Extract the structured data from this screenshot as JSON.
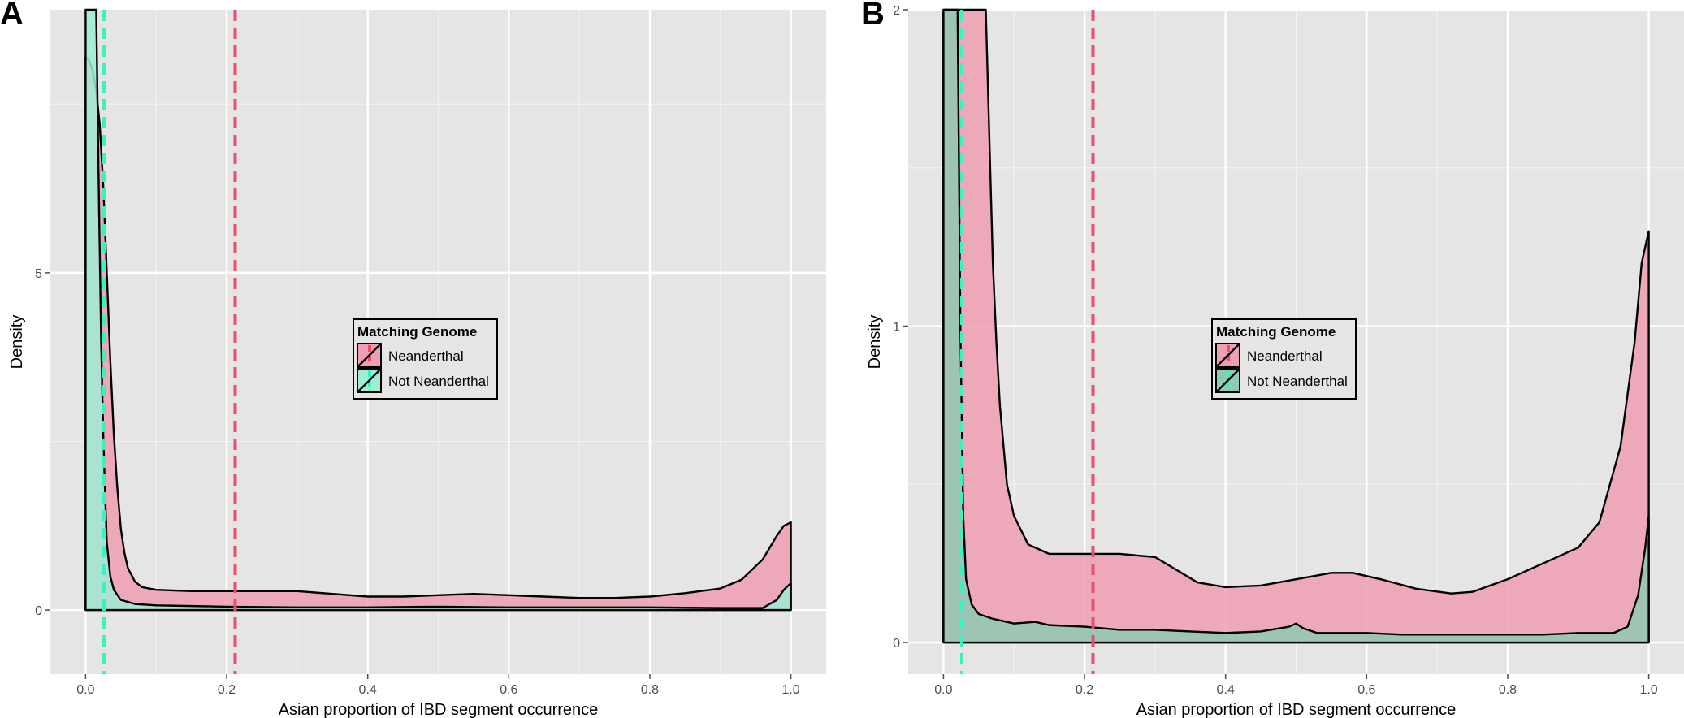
{
  "chart_data": [
    {
      "panel": "A",
      "type": "area",
      "xlabel": "Asian proportion of IBD segment occurrence",
      "ylabel": "Density",
      "xlim": [
        -0.05,
        1.05
      ],
      "ylim": [
        -0.95,
        8.9
      ],
      "x_ticks": [
        "0.0",
        "0.2",
        "0.4",
        "0.6",
        "0.8",
        "1.0"
      ],
      "y_ticks": [
        "0",
        "5"
      ],
      "y_tick_values": [
        0,
        5
      ],
      "grid": true,
      "background": "#e5e5e5",
      "legend": {
        "title": "Matching Genome",
        "position": "center",
        "entries": [
          "Neanderthal",
          "Not Neanderthal"
        ]
      },
      "vlines": [
        {
          "series": "Neanderthal",
          "x": 0.212,
          "style": "dashed"
        },
        {
          "series": "Not Neanderthal",
          "x": 0.026,
          "style": "dashed"
        }
      ],
      "series": [
        {
          "name": "Neanderthal",
          "color": "#ef9fb3",
          "line_color": "#e8506e",
          "points": [
            [
              0.0,
              8.2
            ],
            [
              0.005,
              8.15
            ],
            [
              0.01,
              8.0
            ],
            [
              0.015,
              7.7
            ],
            [
              0.02,
              7.2
            ],
            [
              0.025,
              6.3
            ],
            [
              0.03,
              5.0
            ],
            [
              0.035,
              3.7
            ],
            [
              0.04,
              2.6
            ],
            [
              0.045,
              1.8
            ],
            [
              0.05,
              1.2
            ],
            [
              0.055,
              0.85
            ],
            [
              0.06,
              0.62
            ],
            [
              0.07,
              0.42
            ],
            [
              0.08,
              0.34
            ],
            [
              0.1,
              0.3
            ],
            [
              0.15,
              0.28
            ],
            [
              0.2,
              0.28
            ],
            [
              0.25,
              0.28
            ],
            [
              0.3,
              0.28
            ],
            [
              0.35,
              0.24
            ],
            [
              0.4,
              0.2
            ],
            [
              0.45,
              0.2
            ],
            [
              0.5,
              0.22
            ],
            [
              0.55,
              0.24
            ],
            [
              0.6,
              0.22
            ],
            [
              0.65,
              0.2
            ],
            [
              0.7,
              0.18
            ],
            [
              0.75,
              0.18
            ],
            [
              0.8,
              0.2
            ],
            [
              0.85,
              0.25
            ],
            [
              0.9,
              0.32
            ],
            [
              0.93,
              0.45
            ],
            [
              0.96,
              0.75
            ],
            [
              0.98,
              1.1
            ],
            [
              0.99,
              1.25
            ],
            [
              1.0,
              1.3
            ]
          ]
        },
        {
          "name": "Not Neanderthal",
          "color": "#9eedd5",
          "line_color": "#3cf0c0",
          "points": [
            [
              0.0,
              9.0
            ],
            [
              0.01,
              9.0
            ],
            [
              0.015,
              9.0
            ],
            [
              0.019,
              6.0
            ],
            [
              0.022,
              4.0
            ],
            [
              0.025,
              2.6
            ],
            [
              0.028,
              1.6
            ],
            [
              0.03,
              1.0
            ],
            [
              0.035,
              0.5
            ],
            [
              0.04,
              0.3
            ],
            [
              0.05,
              0.15
            ],
            [
              0.07,
              0.09
            ],
            [
              0.1,
              0.07
            ],
            [
              0.15,
              0.06
            ],
            [
              0.2,
              0.05
            ],
            [
              0.3,
              0.04
            ],
            [
              0.4,
              0.04
            ],
            [
              0.5,
              0.05
            ],
            [
              0.6,
              0.04
            ],
            [
              0.7,
              0.04
            ],
            [
              0.8,
              0.04
            ],
            [
              0.9,
              0.03
            ],
            [
              0.96,
              0.03
            ],
            [
              0.98,
              0.15
            ],
            [
              0.99,
              0.3
            ],
            [
              1.0,
              0.4
            ]
          ]
        }
      ]
    },
    {
      "panel": "B",
      "type": "area",
      "xlabel": "Asian proportion of IBD segment occurrence",
      "ylabel": "Density",
      "xlim": [
        -0.05,
        1.05
      ],
      "ylim": [
        -0.1,
        2.0
      ],
      "x_ticks": [
        "0.0",
        "0.2",
        "0.4",
        "0.6",
        "0.8",
        "1.0"
      ],
      "y_ticks": [
        "0",
        "1",
        "2"
      ],
      "y_tick_values": [
        0,
        1,
        2
      ],
      "grid": true,
      "background": "#e5e5e5",
      "legend": {
        "title": "Matching Genome",
        "position": "center",
        "entries": [
          "Neanderthal",
          "Not Neanderthal"
        ]
      },
      "vlines": [
        {
          "series": "Neanderthal",
          "x": 0.212,
          "style": "dashed"
        },
        {
          "series": "Not Neanderthal",
          "x": 0.026,
          "style": "dashed"
        }
      ],
      "series": [
        {
          "name": "Neanderthal",
          "color": "#ef9fb3",
          "line_color": "#e8506e",
          "points": [
            [
              0.0,
              2.0
            ],
            [
              0.05,
              2.0
            ],
            [
              0.06,
              2.0
            ],
            [
              0.065,
              1.6
            ],
            [
              0.07,
              1.2
            ],
            [
              0.075,
              0.95
            ],
            [
              0.08,
              0.75
            ],
            [
              0.09,
              0.5
            ],
            [
              0.1,
              0.4
            ],
            [
              0.12,
              0.31
            ],
            [
              0.15,
              0.28
            ],
            [
              0.2,
              0.28
            ],
            [
              0.25,
              0.28
            ],
            [
              0.3,
              0.27
            ],
            [
              0.33,
              0.23
            ],
            [
              0.36,
              0.19
            ],
            [
              0.4,
              0.175
            ],
            [
              0.45,
              0.18
            ],
            [
              0.5,
              0.2
            ],
            [
              0.55,
              0.22
            ],
            [
              0.58,
              0.22
            ],
            [
              0.62,
              0.2
            ],
            [
              0.67,
              0.17
            ],
            [
              0.72,
              0.155
            ],
            [
              0.75,
              0.16
            ],
            [
              0.8,
              0.2
            ],
            [
              0.85,
              0.25
            ],
            [
              0.9,
              0.3
            ],
            [
              0.93,
              0.38
            ],
            [
              0.96,
              0.62
            ],
            [
              0.98,
              0.95
            ],
            [
              0.99,
              1.2
            ],
            [
              1.0,
              1.3
            ]
          ]
        },
        {
          "name": "Not Neanderthal",
          "color": "#8fcab3",
          "line_color": "#3cf0c0",
          "points": [
            [
              0.0,
              2.0
            ],
            [
              0.01,
              2.0
            ],
            [
              0.02,
              2.0
            ],
            [
              0.024,
              1.0
            ],
            [
              0.028,
              0.4
            ],
            [
              0.032,
              0.2
            ],
            [
              0.04,
              0.12
            ],
            [
              0.05,
              0.09
            ],
            [
              0.07,
              0.075
            ],
            [
              0.1,
              0.06
            ],
            [
              0.13,
              0.065
            ],
            [
              0.15,
              0.055
            ],
            [
              0.2,
              0.05
            ],
            [
              0.25,
              0.04
            ],
            [
              0.3,
              0.04
            ],
            [
              0.35,
              0.035
            ],
            [
              0.4,
              0.03
            ],
            [
              0.45,
              0.035
            ],
            [
              0.49,
              0.05
            ],
            [
              0.5,
              0.06
            ],
            [
              0.51,
              0.045
            ],
            [
              0.53,
              0.03
            ],
            [
              0.6,
              0.03
            ],
            [
              0.65,
              0.025
            ],
            [
              0.7,
              0.025
            ],
            [
              0.75,
              0.025
            ],
            [
              0.8,
              0.025
            ],
            [
              0.85,
              0.025
            ],
            [
              0.9,
              0.03
            ],
            [
              0.95,
              0.03
            ],
            [
              0.97,
              0.05
            ],
            [
              0.985,
              0.15
            ],
            [
              0.995,
              0.3
            ],
            [
              1.0,
              0.4
            ]
          ]
        }
      ]
    }
  ]
}
